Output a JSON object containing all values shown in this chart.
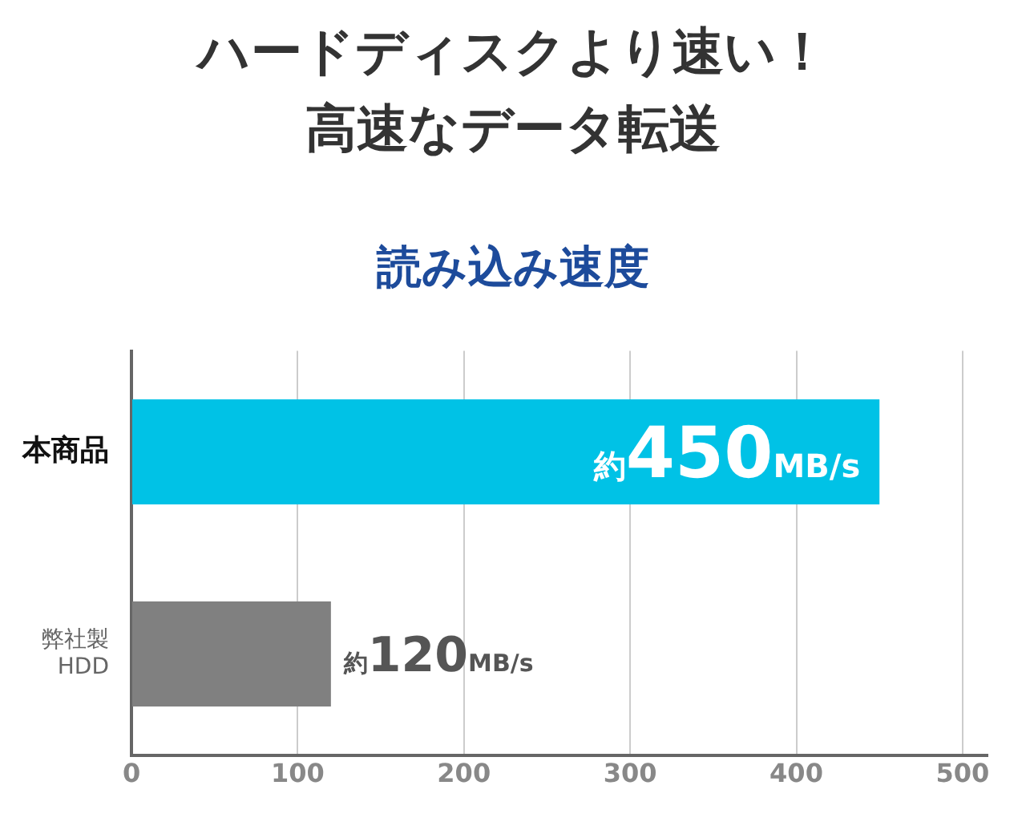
{
  "chart_data": {
    "type": "bar",
    "orientation": "horizontal",
    "title": "ハードディスクより速い！高速なデータ転送",
    "subtitle": "読み込み速度",
    "categories": [
      "本商品",
      "弊社製\nHDD"
    ],
    "values": [
      450,
      120
    ],
    "colors": [
      "#00c2e6",
      "#808080"
    ],
    "value_labels": [
      "約450MB/s",
      "約120MB/s"
    ],
    "xlim": [
      0,
      515
    ],
    "xticks": [
      0,
      100,
      200,
      300,
      400,
      500
    ],
    "grid": "x",
    "legend": false
  }
}
